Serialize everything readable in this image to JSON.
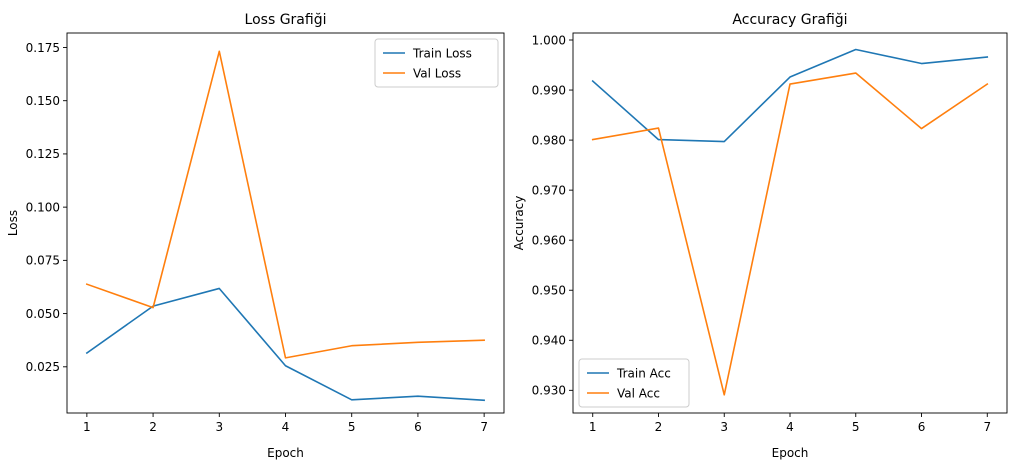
{
  "chart_data": [
    {
      "type": "line",
      "title": "Loss Grafiği",
      "xlabel": "Epoch",
      "ylabel": "Loss",
      "x": [
        1,
        2,
        3,
        4,
        5,
        6,
        7
      ],
      "xlim": [
        0.7,
        7.3
      ],
      "ylim": [
        0.0033,
        0.1818
      ],
      "xticks": [
        1,
        2,
        3,
        4,
        5,
        6,
        7
      ],
      "yticks": [
        0.025,
        0.05,
        0.075,
        0.1,
        0.125,
        0.15,
        0.175
      ],
      "ytick_labels": [
        "0.025",
        "0.050",
        "0.075",
        "0.100",
        "0.125",
        "0.150",
        "0.175"
      ],
      "legend": "top-right",
      "grid": false,
      "series": [
        {
          "name": "Train Loss",
          "color": "#1f77b4",
          "values": [
            0.0315,
            0.0535,
            0.0618,
            0.0255,
            0.0095,
            0.0112,
            0.0093
          ]
        },
        {
          "name": "Val Loss",
          "color": "#ff7f0e",
          "values": [
            0.0638,
            0.0528,
            0.1732,
            0.0292,
            0.0349,
            0.0365,
            0.0375
          ]
        }
      ]
    },
    {
      "type": "line",
      "title": "Accuracy Grafiği",
      "xlabel": "Epoch",
      "ylabel": "Accuracy",
      "x": [
        1,
        2,
        3,
        4,
        5,
        6,
        7
      ],
      "xlim": [
        0.7,
        7.3
      ],
      "ylim": [
        0.92547,
        1.0014
      ],
      "xticks": [
        1,
        2,
        3,
        4,
        5,
        6,
        7
      ],
      "yticks": [
        0.93,
        0.94,
        0.95,
        0.96,
        0.97,
        0.98,
        0.99,
        1.0
      ],
      "ytick_labels": [
        "0.930",
        "0.940",
        "0.950",
        "0.960",
        "0.970",
        "0.980",
        "0.990",
        "1.000"
      ],
      "legend": "bottom-left",
      "grid": false,
      "series": [
        {
          "name": "Train Acc",
          "color": "#1f77b4",
          "values": [
            0.9918,
            0.9801,
            0.9797,
            0.9926,
            0.9981,
            0.9953,
            0.9966
          ]
        },
        {
          "name": "Val Acc",
          "color": "#ff7f0e",
          "values": [
            0.9801,
            0.9824,
            0.9291,
            0.9912,
            0.9934,
            0.9823,
            0.9912
          ]
        }
      ]
    }
  ]
}
